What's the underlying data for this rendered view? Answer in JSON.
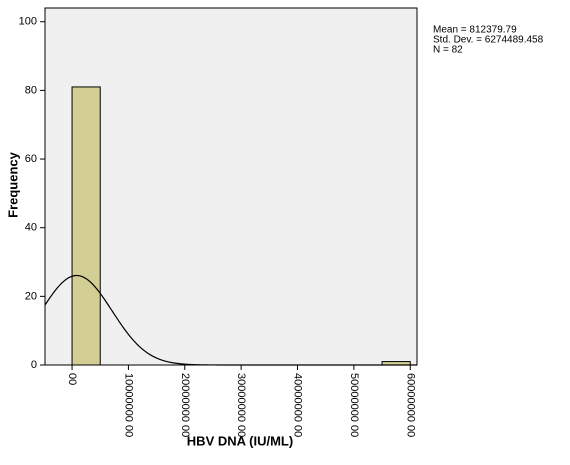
{
  "chart_data": {
    "type": "histogram",
    "x_label": "HBV DNA (IU/ML)",
    "y_label": "Frequency",
    "bins": [
      0,
      5000000,
      10000000,
      15000000,
      20000000,
      25000000,
      30000000,
      35000000,
      40000000,
      45000000,
      50000000,
      55000000,
      60000000
    ],
    "values": [
      81,
      0,
      0,
      0,
      0,
      0,
      0,
      0,
      0,
      0,
      0,
      1
    ],
    "color": "#d3cf94",
    "xlim": [
      -4800000,
      61200000
    ],
    "xticks": [
      {
        "value": 0,
        "label": "00"
      },
      {
        "value": 10000000,
        "label": "10000000 00"
      },
      {
        "value": 20000000,
        "label": "20000000 00"
      },
      {
        "value": 30000000,
        "label": "30000000 00"
      },
      {
        "value": 40000000,
        "label": "40000000 00"
      },
      {
        "value": 50000000,
        "label": "50000000 00"
      },
      {
        "value": 60000000,
        "label": "60000000 00"
      }
    ],
    "ylim": [
      0,
      104
    ],
    "yticks": [
      0,
      20,
      40,
      60,
      80,
      100
    ],
    "stats": [
      "Mean = 812379.79",
      "Std. Dev. = 6274489.458",
      "N = 82"
    ],
    "normal_curve": {
      "mean": 812379.79,
      "std_dev": 6274489.458,
      "n": 82
    }
  }
}
